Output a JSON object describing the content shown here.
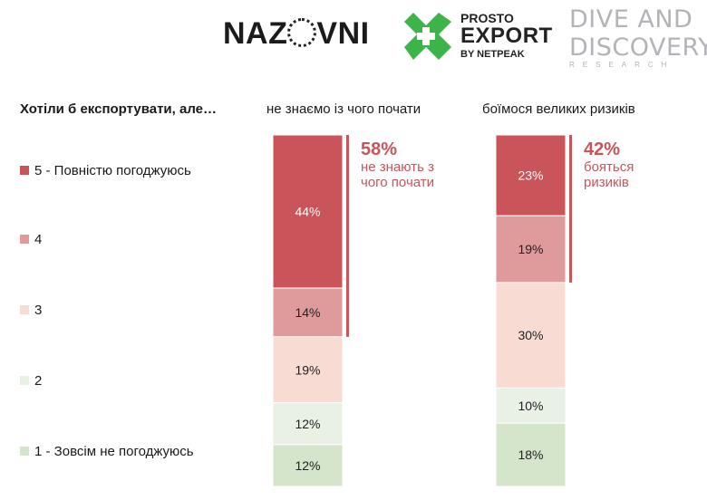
{
  "logos": {
    "nazovni": {
      "before": "NAZ",
      "after": "VNI"
    },
    "prosto": {
      "line1": "PROSTO",
      "line2": "EXPORT",
      "line3": "BY NETPEAK"
    },
    "dive": {
      "line1": "DIVE AND",
      "line2": "DISCOVERY",
      "line3": "RESEARCH"
    }
  },
  "question": "Хотіли б експортувати, але…",
  "colors": {
    "5": "#c9555a",
    "4": "#df9a9c",
    "3": "#f8dcd3",
    "2": "#e9f1e4",
    "1": "#d4e5cb",
    "label": "#c9555a"
  },
  "chart_data": {
    "type": "bar",
    "stacked": true,
    "percent_scale": true,
    "legend_position": "left",
    "categories": [
      "не знаємо із чого почати",
      "боїмося великих ризиків"
    ],
    "series": [
      {
        "key": "5",
        "name": "5 - Повністю погоджуюсь",
        "values": [
          44,
          23
        ],
        "labels": [
          "44%",
          "23%"
        ]
      },
      {
        "key": "4",
        "name": "4",
        "values": [
          14,
          19
        ],
        "labels": [
          "14%",
          "19%"
        ]
      },
      {
        "key": "3",
        "name": "3",
        "values": [
          19,
          30
        ],
        "labels": [
          "19%",
          "30%"
        ]
      },
      {
        "key": "2",
        "name": "2",
        "values": [
          12,
          10
        ],
        "labels": [
          "12%",
          "10%"
        ]
      },
      {
        "key": "1",
        "name": "1 - Зовсім не погоджуюсь",
        "values": [
          12,
          18
        ],
        "labels": [
          "12%",
          "18%"
        ]
      }
    ],
    "annotations": [
      {
        "value": 58,
        "pct": "58%",
        "lines": [
          "не знають з",
          "чого почати"
        ]
      },
      {
        "value": 42,
        "pct": "42%",
        "lines": [
          "бояться",
          "ризиків"
        ]
      }
    ]
  }
}
